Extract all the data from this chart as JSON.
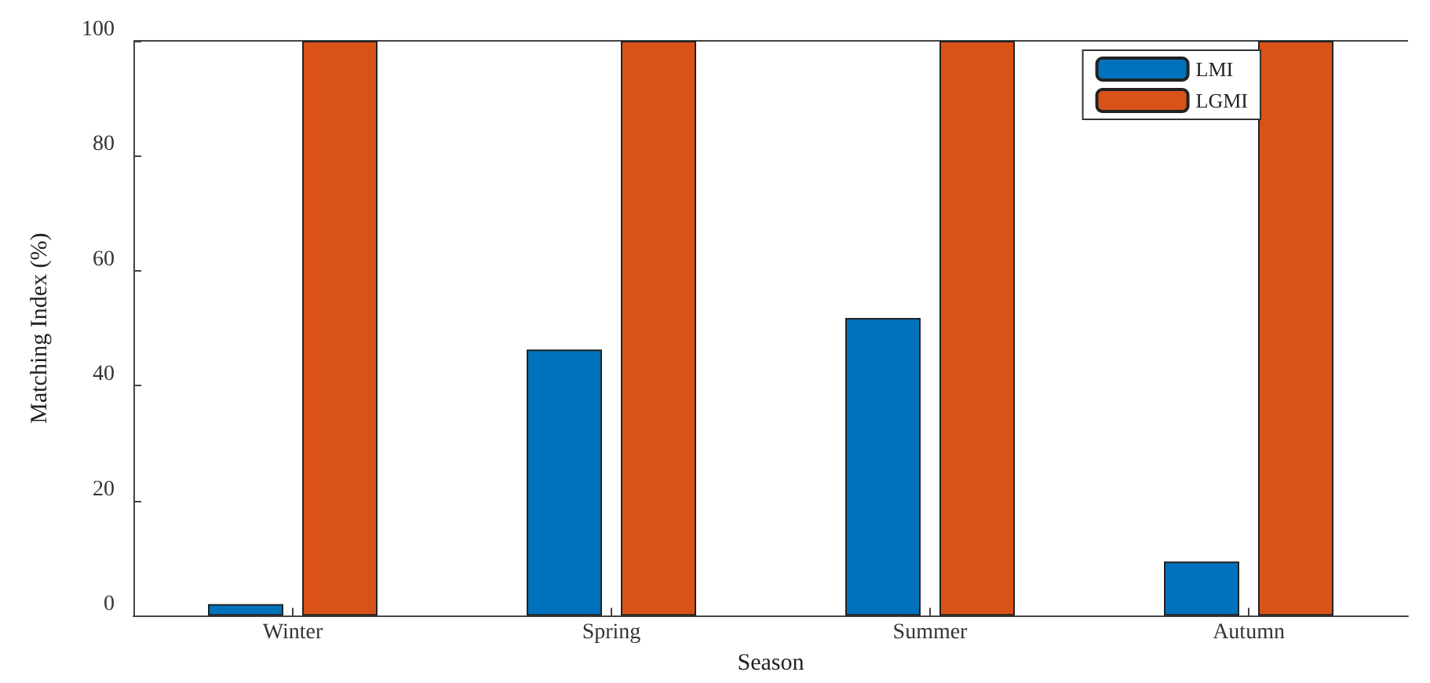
{
  "chart_data": {
    "type": "bar",
    "xlabel": "Season",
    "ylabel": "Matching Index (%)",
    "categories": [
      "Winter",
      "Spring",
      "Summer",
      "Autumn"
    ],
    "series": [
      {
        "name": "LMI",
        "color": "#0072bd",
        "values": [
          2.0,
          46.3,
          51.8,
          9.4
        ]
      },
      {
        "name": "LGMI",
        "color": "#d95319",
        "values": [
          100,
          100,
          100,
          100
        ]
      }
    ],
    "ylim": [
      0,
      100
    ],
    "yticks": [
      0,
      20,
      40,
      60,
      80,
      100
    ],
    "grid": false,
    "legend": "top right"
  }
}
